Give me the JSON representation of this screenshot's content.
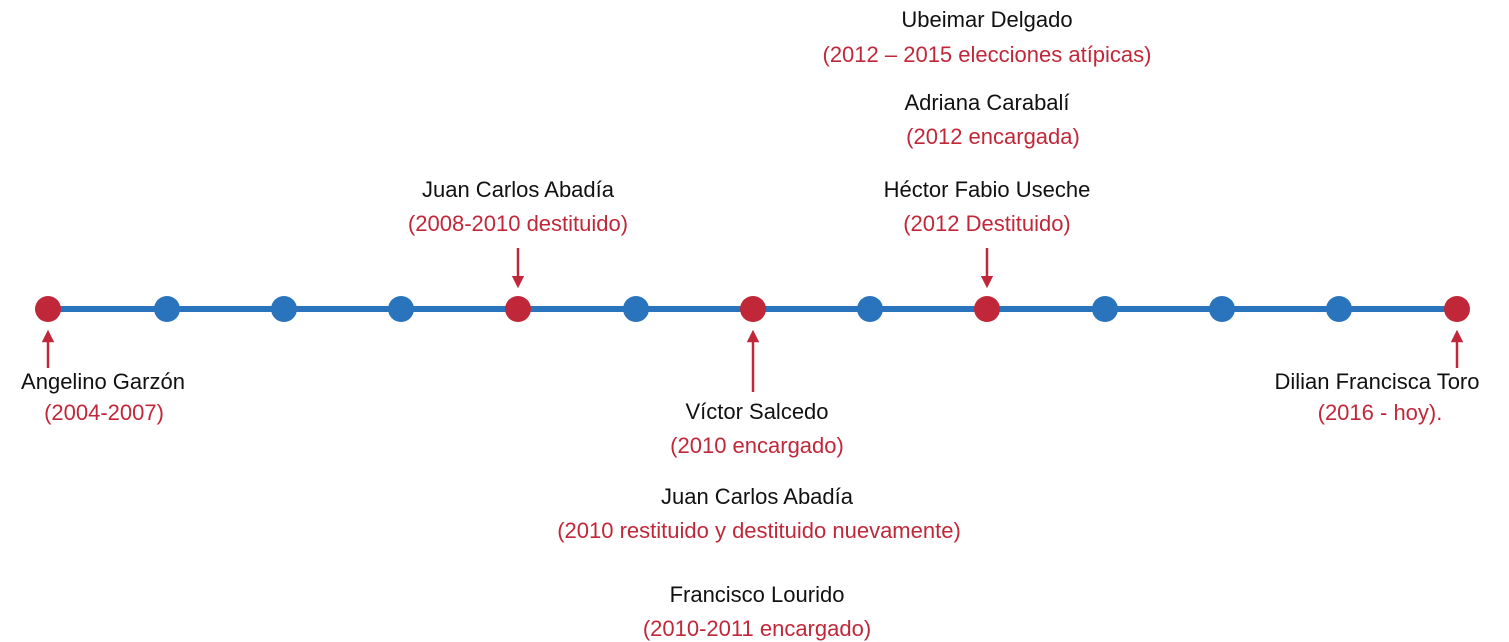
{
  "events": [
    {
      "name": "Angelino Garzón",
      "period": "(2004-2007)"
    },
    {
      "name": "Juan Carlos Abadía",
      "period": "(2008-2010 destituido)"
    },
    {
      "name": "Víctor Salcedo",
      "period": "(2010 encargado)"
    },
    {
      "name": "Juan Carlos Abadía",
      "period": "(2010 restituido y destituido nuevamente)"
    },
    {
      "name": "Francisco Lourido",
      "period": "(2010-2011 encargado)"
    },
    {
      "name": "Ubeimar Delgado",
      "period": "(2012 – 2015 elecciones atípicas)"
    },
    {
      "name": "Adriana Carabalí",
      "period": "(2012 encargada)"
    },
    {
      "name": "Héctor Fabio Useche",
      "period": "(2012 Destituido)"
    },
    {
      "name": "Dilian Francisca Toro",
      "period": "(2016 - hoy)."
    }
  ]
}
